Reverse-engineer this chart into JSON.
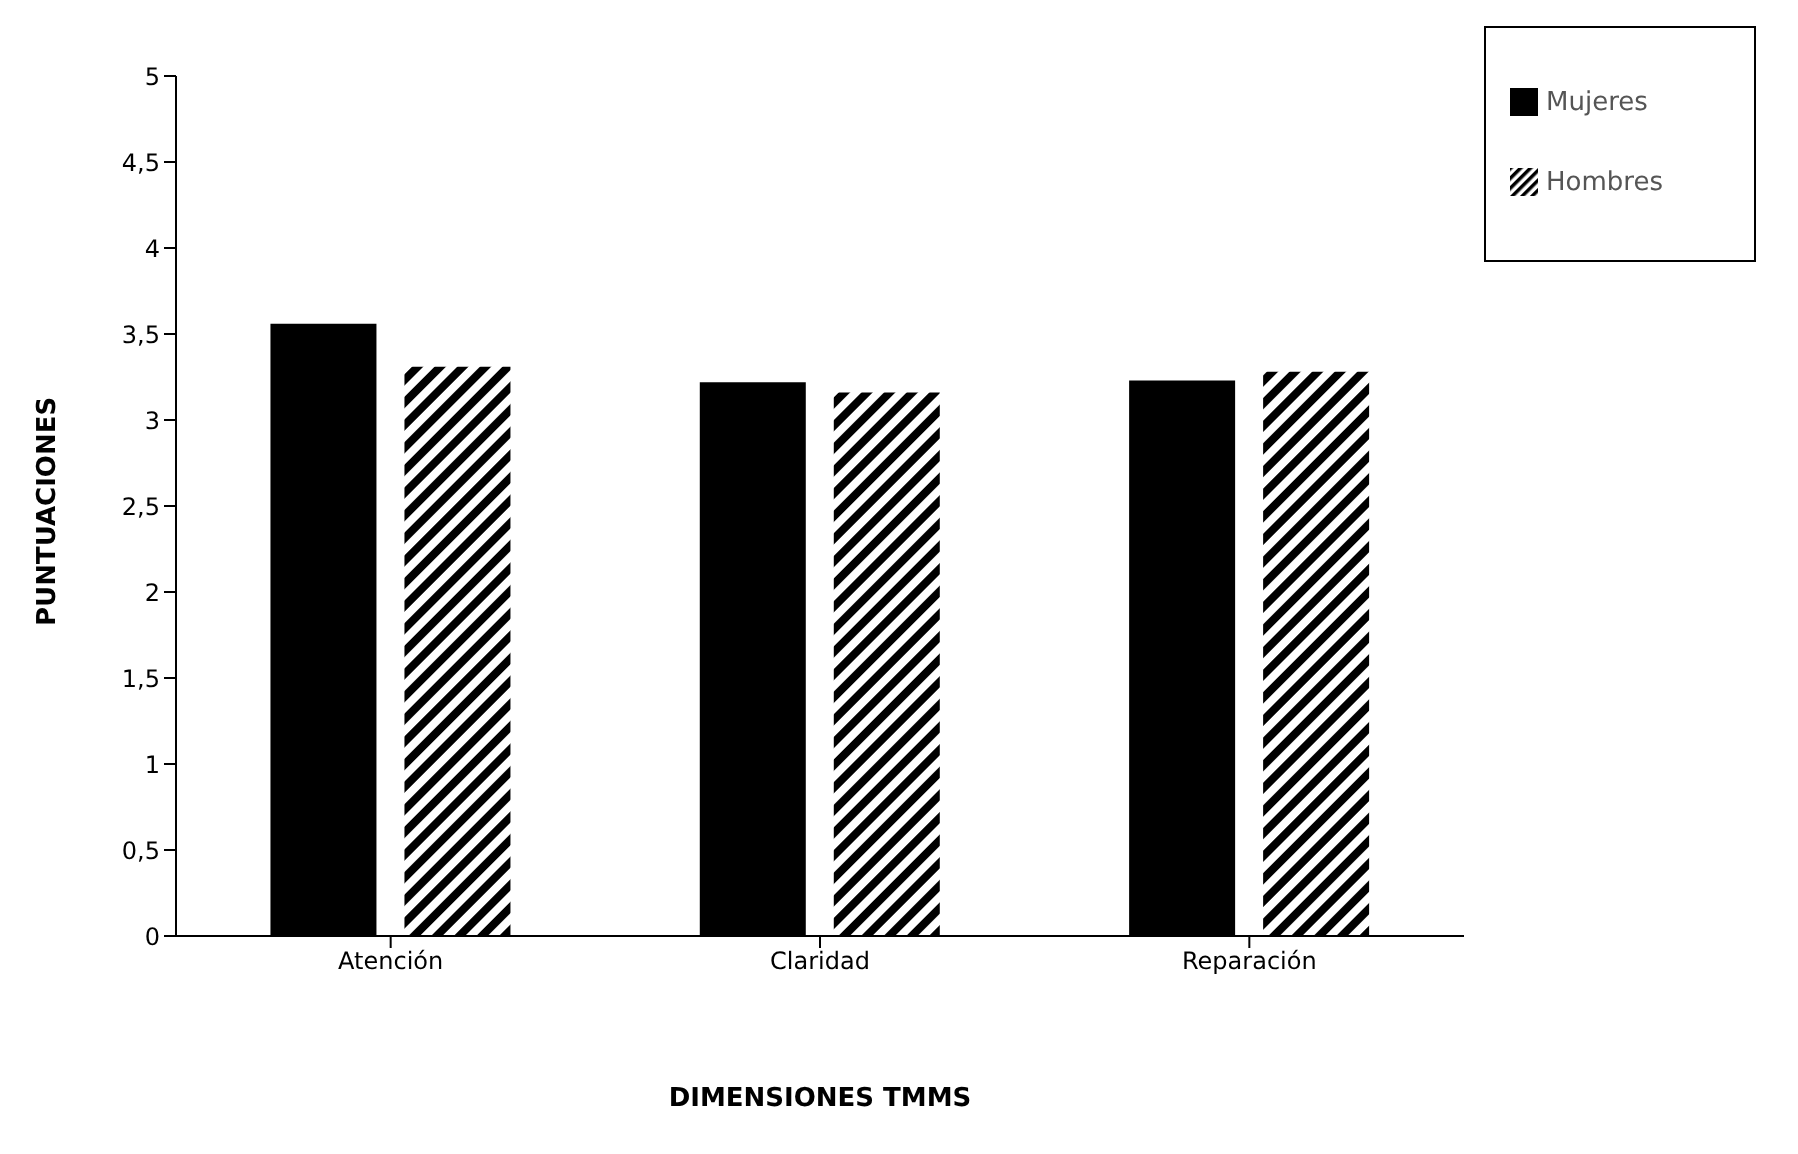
{
  "chart_data": {
    "type": "bar",
    "xlabel": "DIMENSIONES TMMS",
    "ylabel": "PUNTUACIONES",
    "categories": [
      "Atención",
      "Claridad",
      "Reparación"
    ],
    "series": [
      {
        "name": "Mujeres",
        "color": "#000000",
        "values": [
          3.56,
          3.22,
          3.23
        ]
      },
      {
        "name": "Hombres",
        "color": "#000000",
        "values": [
          3.31,
          3.16,
          3.28
        ]
      }
    ],
    "ylim": [
      0,
      5
    ],
    "yticks": [
      0,
      {
        "value": 0.5,
        "label": "0,5"
      },
      1,
      {
        "value": 1.5,
        "label": "1,5"
      },
      2,
      {
        "value": 2.5,
        "label": "2,5"
      },
      3,
      {
        "value": 3.5,
        "label": "3,5"
      },
      4,
      {
        "value": 4.5,
        "label": "4,5"
      },
      5
    ],
    "grid": false,
    "legend": "top right"
  }
}
